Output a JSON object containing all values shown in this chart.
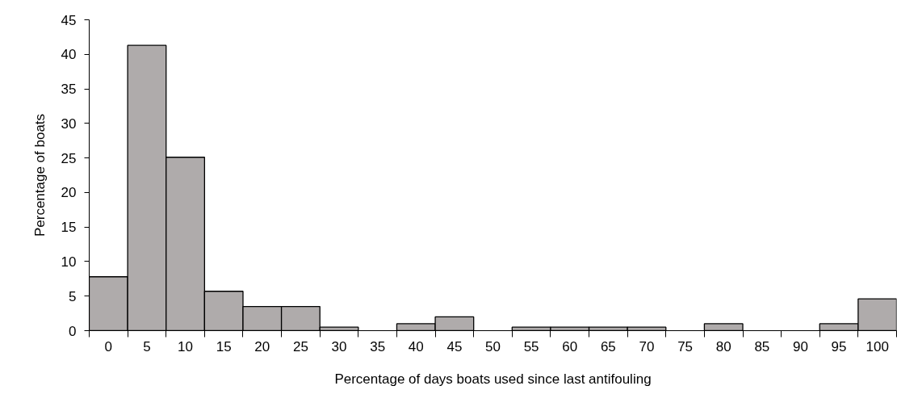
{
  "chart_data": {
    "type": "bar",
    "xlabel": "Percentage of days boats used since last antifouling",
    "ylabel": "Percentage of boats",
    "categories": [
      "0",
      "5",
      "10",
      "15",
      "20",
      "25",
      "30",
      "35",
      "40",
      "45",
      "50",
      "55",
      "60",
      "65",
      "70",
      "75",
      "80",
      "85",
      "90",
      "95",
      "100"
    ],
    "values": [
      7.8,
      41.3,
      25.1,
      5.7,
      3.5,
      3.5,
      0.5,
      0,
      1.0,
      2.0,
      0,
      0.5,
      0.5,
      0.5,
      0.5,
      0,
      1.0,
      0,
      0,
      1.0,
      4.6
    ],
    "color": "#afabab",
    "ylim": [
      0,
      45
    ],
    "yticks": [
      0,
      5,
      10,
      15,
      20,
      25,
      30,
      35,
      40,
      45
    ],
    "grid": false
  }
}
